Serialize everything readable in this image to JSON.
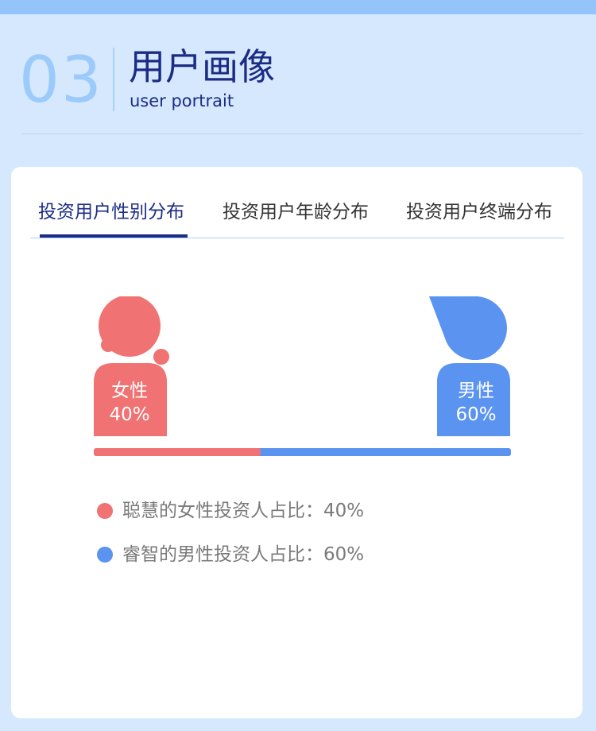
{
  "header": {
    "section_number": "03",
    "title": "用户画像",
    "subtitle": "user portrait"
  },
  "tabs": [
    {
      "label": "投资用户性别分布",
      "active": true
    },
    {
      "label": "投资用户年龄分布",
      "active": false
    },
    {
      "label": "投资用户终端分布",
      "active": false
    }
  ],
  "gender": {
    "female": {
      "label": "女性",
      "percent_text": "40%",
      "share": 0.4,
      "color": "#f07272"
    },
    "male": {
      "label": "男性",
      "percent_text": "60%",
      "share": 0.6,
      "color": "#5a93f0"
    }
  },
  "legend": [
    {
      "text": "聪慧的女性投资人占比：40%",
      "color": "#f07272"
    },
    {
      "text": "睿智的男性投资人占比：60%",
      "color": "#5a93f0"
    }
  ],
  "colors": {
    "accent": "#1c2c85",
    "background": "#d5e8fd",
    "topbar": "#93c5fb"
  }
}
